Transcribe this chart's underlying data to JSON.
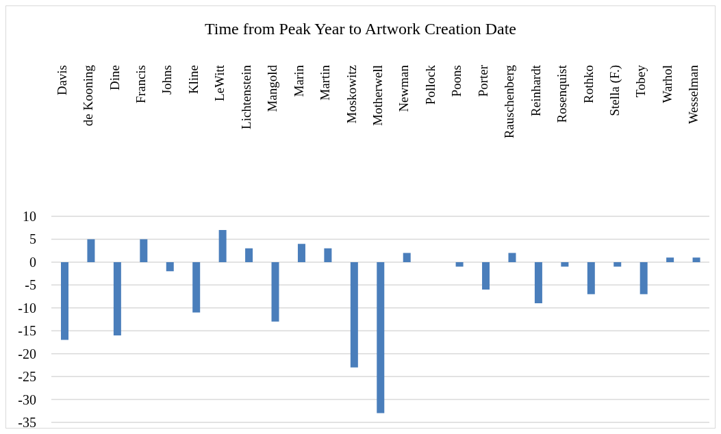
{
  "chart_data": {
    "type": "bar",
    "title": "Time from Peak Year to Artwork Creation Date",
    "categories": [
      "Davis",
      "de Kooning",
      "Dine",
      "Francis",
      "Johns",
      "Kline",
      "LeWitt",
      "Lichtenstein",
      "Mangold",
      "Marin",
      "Martin",
      "Moskowitz",
      "Motherwell",
      "Newman",
      "Pollock",
      "Poons",
      "Porter",
      "Rauschenberg",
      "Reinhardt",
      "Rosenquist",
      "Rothko",
      "Stella (F.)",
      "Tobey",
      "Warhol",
      "Wesselman"
    ],
    "values": [
      -17,
      5,
      -16,
      5,
      -2,
      -11,
      7,
      3,
      -13,
      4,
      3,
      -23,
      -33,
      2,
      0,
      -1,
      -6,
      2,
      -9,
      -1,
      -7,
      -1,
      -7,
      1,
      1
    ],
    "color": "#4a7ebb",
    "ylim": [
      -35,
      10
    ],
    "yticks": [
      -35,
      -30,
      -25,
      -20,
      -15,
      -10,
      -5,
      0,
      5,
      10
    ],
    "grid": "y"
  }
}
